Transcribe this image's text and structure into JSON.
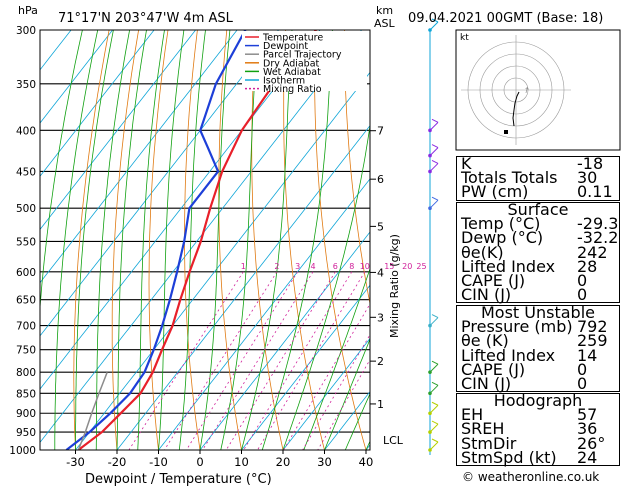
{
  "header": {
    "location": "71°17'N  203°47'W  4m  ASL",
    "datetime": "09.04.2021  00GMT  (Base: 18)"
  },
  "axes": {
    "left_unit": "hPa",
    "right_unit_line1": "km",
    "right_unit_line2": "ASL",
    "mixing_label": "Mixing Ratio (g/kg)",
    "x_title": "Dewpoint / Temperature (°C)",
    "lcl_label": "LCL"
  },
  "chart_data": {
    "type": "line",
    "title": "Skew-T log-P diagram",
    "pressure_levels": [
      300,
      350,
      400,
      450,
      500,
      550,
      600,
      650,
      700,
      750,
      800,
      850,
      900,
      950,
      1000
    ],
    "x_ticks": [
      -30,
      -20,
      -10,
      0,
      10,
      20,
      30,
      40
    ],
    "km_ticks": [
      {
        "km": 1,
        "label": "1"
      },
      {
        "km": 2,
        "label": "2"
      },
      {
        "km": 3,
        "label": "3"
      },
      {
        "km": 4,
        "label": "4"
      },
      {
        "km": 5,
        "label": "5"
      },
      {
        "km": 6,
        "label": "6"
      },
      {
        "km": 7,
        "label": "7"
      }
    ],
    "mixing_ratio_labels": [
      "1",
      "2",
      "3",
      "4",
      "6",
      "8",
      "10",
      "15",
      "20",
      "25"
    ],
    "legend": [
      {
        "name": "Temperature",
        "color": "#e8202a"
      },
      {
        "name": "Dewpoint",
        "color": "#1d3fd8"
      },
      {
        "name": "Parcel Trajectory",
        "color": "#8c8c8c"
      },
      {
        "name": "Dry Adiabat",
        "color": "#e07a12"
      },
      {
        "name": "Wet Adiabat",
        "color": "#10a010"
      },
      {
        "name": "Isotherm",
        "color": "#10a6d8"
      },
      {
        "name": "Mixing Ratio",
        "color": "#d0209a"
      }
    ],
    "series": [
      {
        "name": "Temperature",
        "color": "#e8202a",
        "points": [
          [
            1000,
            -29.3
          ],
          [
            950,
            -27
          ],
          [
            900,
            -26
          ],
          [
            850,
            -25
          ],
          [
            800,
            -26
          ],
          [
            750,
            -28
          ],
          [
            700,
            -30
          ],
          [
            650,
            -33
          ],
          [
            600,
            -36
          ],
          [
            550,
            -39
          ],
          [
            500,
            -43
          ],
          [
            450,
            -47
          ],
          [
            400,
            -50
          ],
          [
            350,
            -51
          ],
          [
            300,
            -51
          ]
        ]
      },
      {
        "name": "Dewpoint",
        "color": "#1d3fd8",
        "points": [
          [
            1000,
            -32.2
          ],
          [
            950,
            -30
          ],
          [
            900,
            -28.5
          ],
          [
            850,
            -27.5
          ],
          [
            800,
            -28
          ],
          [
            750,
            -30
          ],
          [
            700,
            -32.5
          ],
          [
            650,
            -35.5
          ],
          [
            600,
            -39
          ],
          [
            550,
            -43
          ],
          [
            500,
            -48
          ],
          [
            450,
            -48
          ],
          [
            420,
            -55
          ],
          [
            400,
            -60
          ],
          [
            350,
            -65
          ],
          [
            300,
            -68
          ]
        ]
      },
      {
        "name": "Parcel Trajectory",
        "color": "#8c8c8c",
        "points": [
          [
            1000,
            -29.3
          ],
          [
            950,
            -31
          ],
          [
            900,
            -33
          ],
          [
            850,
            -35
          ],
          [
            800,
            -37
          ]
        ]
      }
    ],
    "xlabel": "Dewpoint / Temperature (°C)",
    "ylabel": "hPa"
  },
  "hodograph": {
    "label": "kt",
    "ring_labels": [
      "10",
      "20",
      "30",
      "40"
    ]
  },
  "indices": {
    "top": [
      {
        "label": "K",
        "value": "-18"
      },
      {
        "label": "Totals Totals",
        "value": "30"
      },
      {
        "label": "PW (cm)",
        "value": "0.11"
      }
    ],
    "surface": {
      "title": "Surface",
      "rows": [
        {
          "label": "Temp (°C)",
          "value": "-29.3"
        },
        {
          "label": "Dewp (°C)",
          "value": "-32.2"
        },
        {
          "label": "θe(K)",
          "value": "242"
        },
        {
          "label": "Lifted Index",
          "value": "28"
        },
        {
          "label": "CAPE (J)",
          "value": "0"
        },
        {
          "label": "CIN (J)",
          "value": "0"
        }
      ]
    },
    "unstable": {
      "title": "Most Unstable",
      "rows": [
        {
          "label": "Pressure (mb)",
          "value": "792"
        },
        {
          "label": "θe (K)",
          "value": "259"
        },
        {
          "label": "Lifted Index",
          "value": "14"
        },
        {
          "label": "CAPE (J)",
          "value": "0"
        },
        {
          "label": "CIN (J)",
          "value": "0"
        }
      ]
    },
    "hodo": {
      "title": "Hodograph",
      "rows": [
        {
          "label": "EH",
          "value": "57"
        },
        {
          "label": "SREH",
          "value": "36"
        },
        {
          "label": "StmDir",
          "value": "26°"
        },
        {
          "label": "StmSpd (kt)",
          "value": "24"
        }
      ]
    }
  },
  "footer": {
    "credit": "© weatheronline.co.uk"
  }
}
